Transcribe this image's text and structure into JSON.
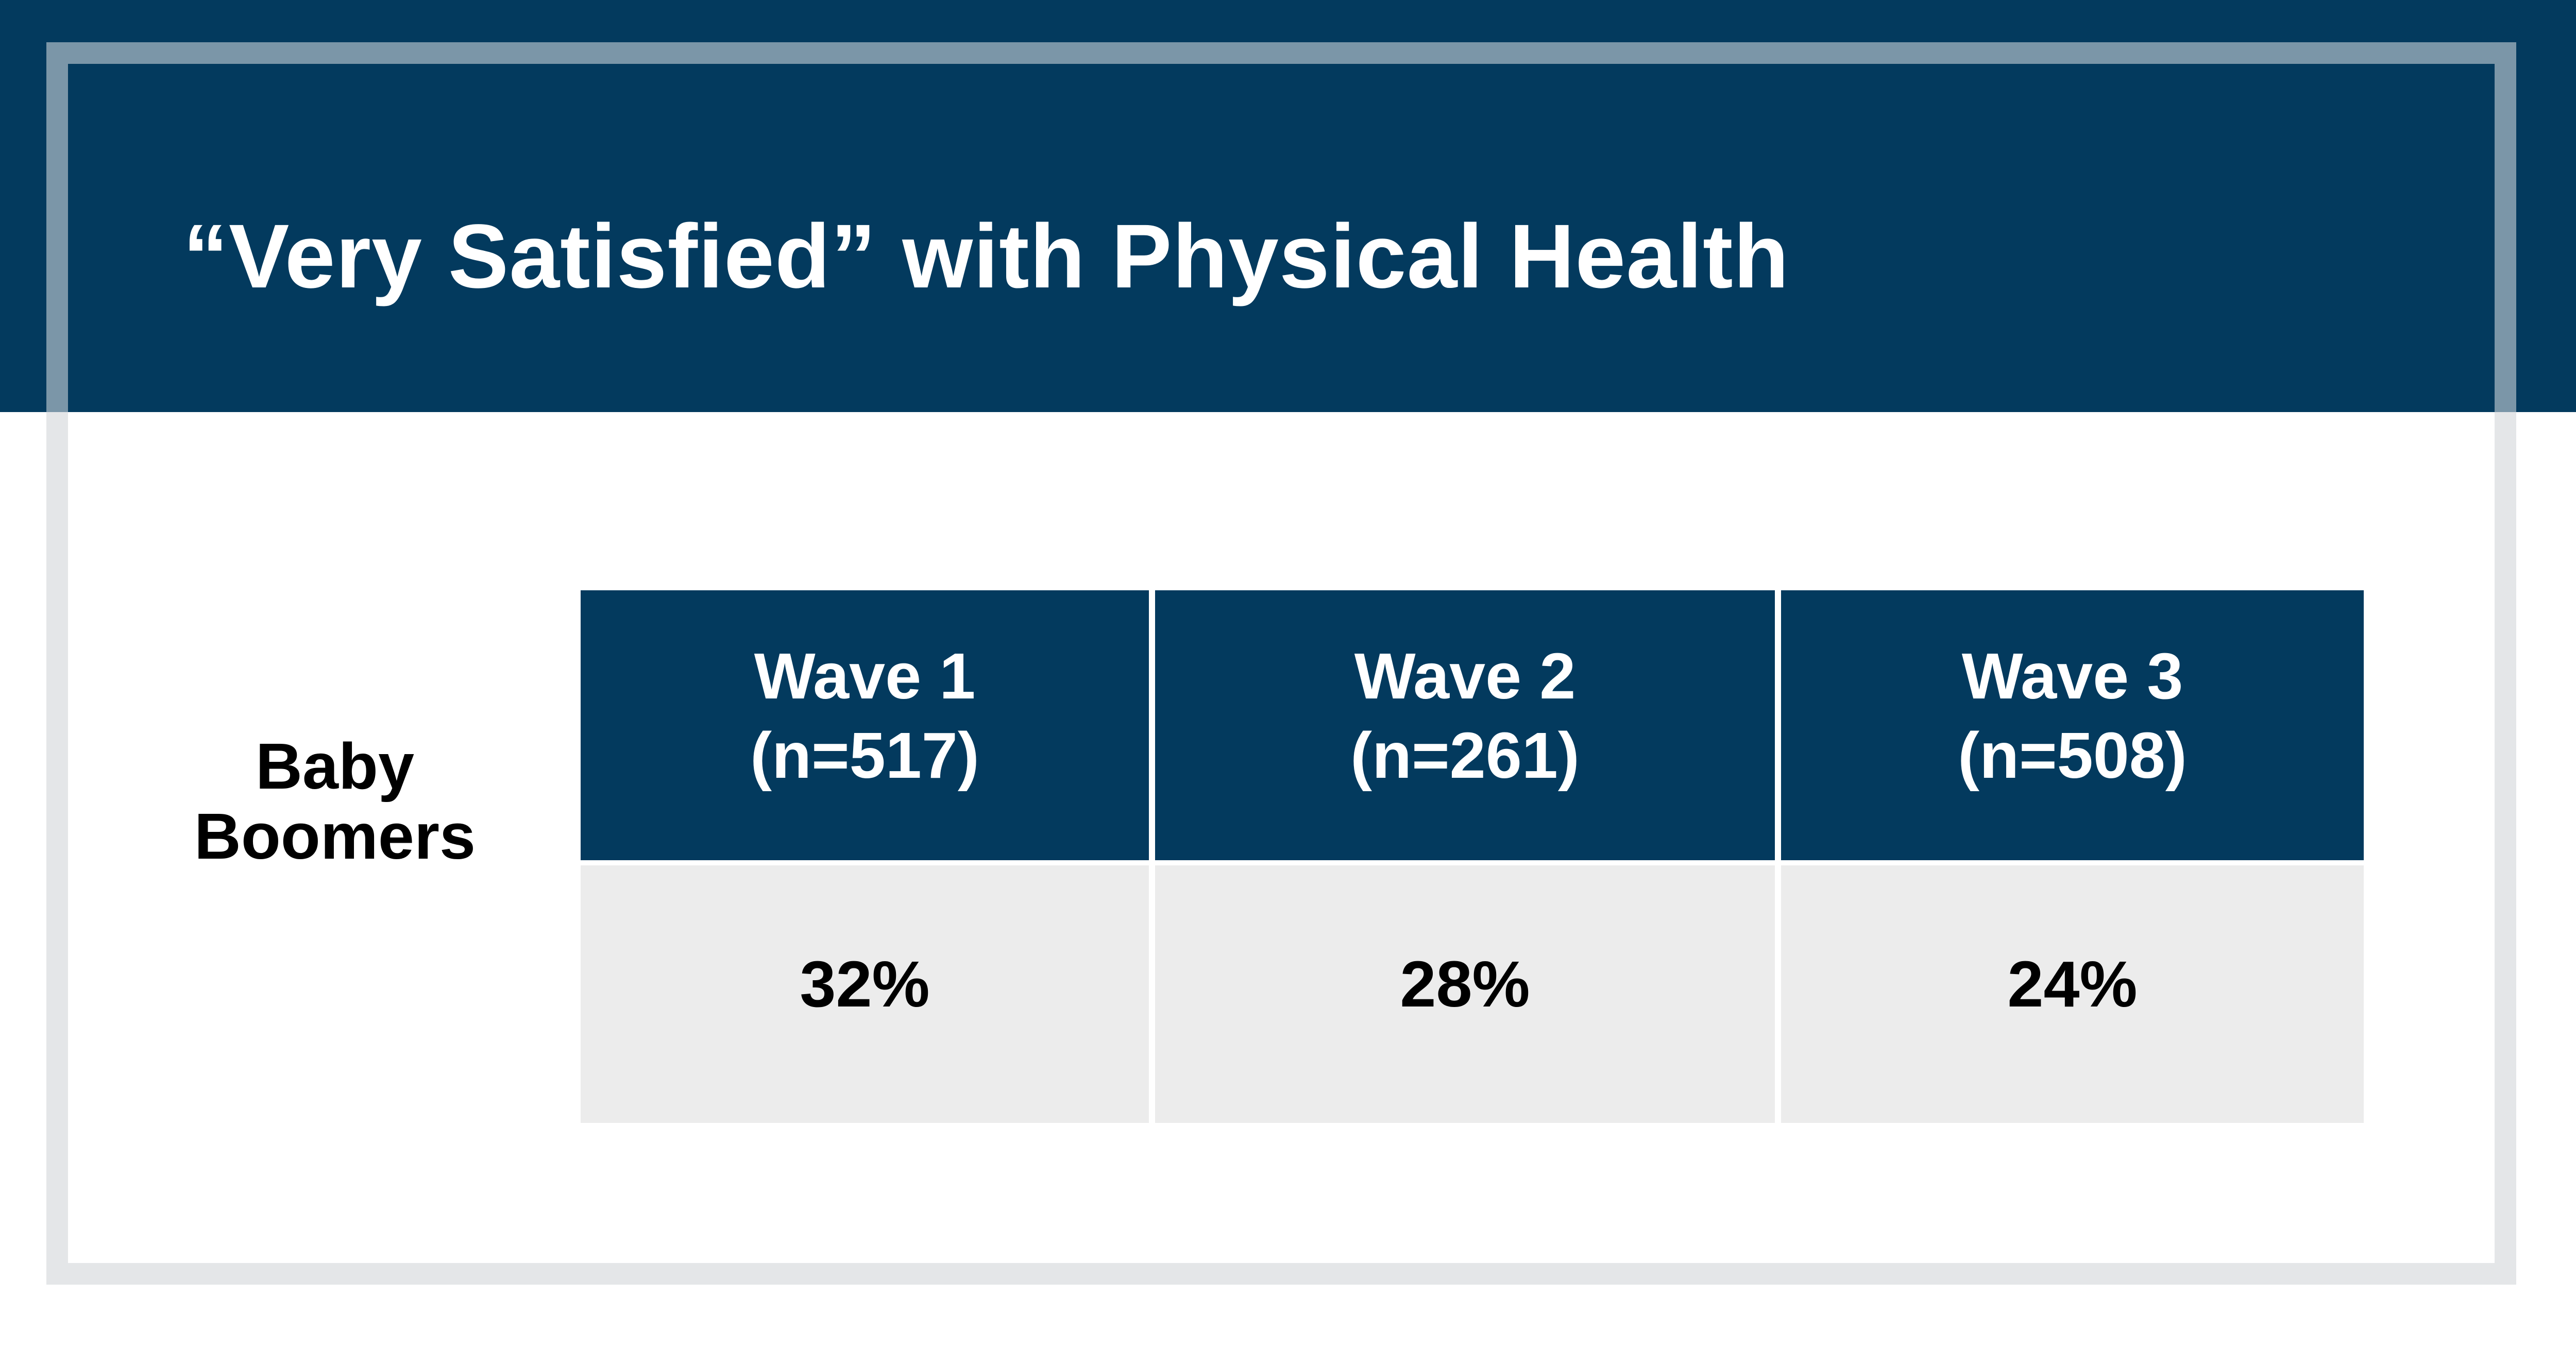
{
  "chart_data": {
    "type": "table",
    "title": "“Very Satisfied” with Physical Health",
    "row_label": [
      "Baby",
      "Boomers"
    ],
    "columns": [
      {
        "name": "Wave 1",
        "n": "(n=517)",
        "value_label": "32%",
        "value": 32
      },
      {
        "name": "Wave 2",
        "n": "(n=261)",
        "value_label": "28%",
        "value": 28
      },
      {
        "name": "Wave 3",
        "n": "(n=508)",
        "value_label": "24%",
        "value": 24
      }
    ]
  },
  "colors": {
    "header_navy": "#033a5e",
    "value_cell_gray": "#ececec",
    "frame_gray": "#ececec"
  }
}
